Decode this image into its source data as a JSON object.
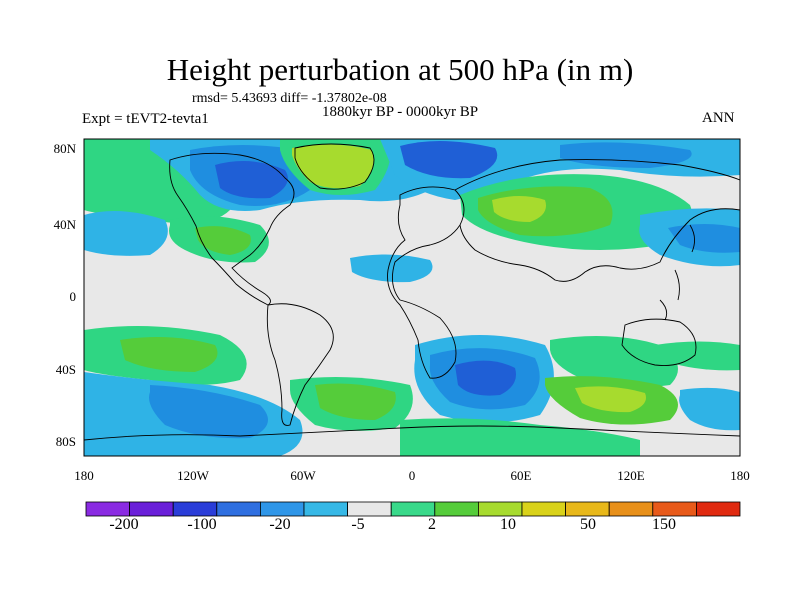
{
  "title": "Height perturbation at 500 hPa (in m)",
  "stats_line": "rmsd= 5.43693 diff= -1.37802e-08",
  "period": "1880kyr BP - 0000kyr BP",
  "experiment": "Expt = tEVT2-tevta1",
  "season": "ANN",
  "lat_ticks": [
    "80N",
    "40N",
    "0",
    "40S",
    "80S"
  ],
  "lon_ticks": [
    "180",
    "120W",
    "60W",
    "0",
    "60E",
    "120E",
    "180"
  ],
  "colorbar": {
    "colors": [
      "#8a2be2",
      "#6a1fd9",
      "#2a3dd8",
      "#2f6fe0",
      "#2f96e8",
      "#36b8e6",
      "#e8e8e8",
      "#39d98a",
      "#55cc3a",
      "#a7db2e",
      "#d9d21a",
      "#e8b81a",
      "#e8901a",
      "#e85a1a",
      "#e02a10"
    ],
    "labels": [
      "-200",
      "-100",
      "-20",
      "-5",
      "2",
      "10",
      "50",
      "150"
    ]
  },
  "colors": {
    "neutral": "#e8e8e8",
    "light_blue": "#2fb3e6",
    "mid_blue": "#1f8ee0",
    "dark_blue": "#1f5fd6",
    "green": "#2fd683",
    "light_green": "#55cc3a",
    "yellow_green": "#a7db2e",
    "coast": "#000000"
  }
}
